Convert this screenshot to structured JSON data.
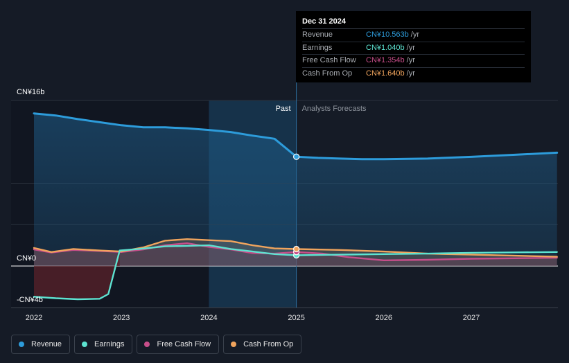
{
  "chart_data": {
    "type": "area",
    "x_ticks": [
      "2022",
      "2023",
      "2024",
      "2025",
      "2026",
      "2027"
    ],
    "y_ticks": [
      {
        "value": 16,
        "label": "CN¥16b"
      },
      {
        "value": 0,
        "label": "CN¥0"
      },
      {
        "value": -4,
        "label": "-CN¥4b"
      }
    ],
    "ylim": [
      -4,
      16
    ],
    "xlim": [
      2021.78,
      2027.98
    ],
    "past_label": "Past",
    "forecast_label": "Analysts Forecasts",
    "divider_x": 2025.0,
    "highlight_start_x": 2024.0,
    "series": [
      {
        "name": "Revenue",
        "color": "#2d9cdb",
        "points": [
          [
            2022.0,
            14.75
          ],
          [
            2022.25,
            14.55
          ],
          [
            2022.5,
            14.2
          ],
          [
            2022.75,
            13.9
          ],
          [
            2023.0,
            13.6
          ],
          [
            2023.25,
            13.4
          ],
          [
            2023.5,
            13.4
          ],
          [
            2023.75,
            13.3
          ],
          [
            2024.0,
            13.15
          ],
          [
            2024.25,
            12.95
          ],
          [
            2024.5,
            12.6
          ],
          [
            2024.75,
            12.3
          ],
          [
            2025.0,
            10.563
          ],
          [
            2025.25,
            10.45
          ],
          [
            2025.5,
            10.38
          ],
          [
            2025.75,
            10.33
          ],
          [
            2026.0,
            10.32
          ],
          [
            2026.5,
            10.38
          ],
          [
            2027.0,
            10.55
          ],
          [
            2027.5,
            10.75
          ],
          [
            2027.98,
            10.95
          ]
        ]
      },
      {
        "name": "Earnings",
        "color": "#5de3d1",
        "points": [
          [
            2022.0,
            -2.95
          ],
          [
            2022.25,
            -3.1
          ],
          [
            2022.5,
            -3.2
          ],
          [
            2022.75,
            -3.15
          ],
          [
            2022.85,
            -2.7
          ],
          [
            2022.98,
            1.5
          ],
          [
            2023.2,
            1.65
          ],
          [
            2023.5,
            1.9
          ],
          [
            2023.75,
            1.95
          ],
          [
            2024.0,
            2.0
          ],
          [
            2024.25,
            1.65
          ],
          [
            2024.5,
            1.4
          ],
          [
            2024.75,
            1.15
          ],
          [
            2025.0,
            1.04
          ],
          [
            2025.5,
            1.1
          ],
          [
            2026.0,
            1.15
          ],
          [
            2026.5,
            1.2
          ],
          [
            2027.0,
            1.28
          ],
          [
            2027.5,
            1.32
          ],
          [
            2027.98,
            1.35
          ]
        ]
      },
      {
        "name": "Free Cash Flow",
        "color": "#c74e8a",
        "points": [
          [
            2022.0,
            1.6
          ],
          [
            2022.2,
            1.3
          ],
          [
            2022.45,
            1.55
          ],
          [
            2022.75,
            1.45
          ],
          [
            2023.0,
            1.35
          ],
          [
            2023.25,
            1.6
          ],
          [
            2023.5,
            2.0
          ],
          [
            2023.75,
            2.2
          ],
          [
            2024.0,
            1.85
          ],
          [
            2024.25,
            1.6
          ],
          [
            2024.5,
            1.25
          ],
          [
            2024.75,
            1.2
          ],
          [
            2025.0,
            1.354
          ],
          [
            2025.3,
            1.2
          ],
          [
            2025.6,
            0.85
          ],
          [
            2026.0,
            0.55
          ],
          [
            2026.5,
            0.6
          ],
          [
            2027.0,
            0.7
          ],
          [
            2027.5,
            0.75
          ],
          [
            2027.98,
            0.8
          ]
        ]
      },
      {
        "name": "Cash From Op",
        "color": "#f0a45d",
        "points": [
          [
            2022.0,
            1.75
          ],
          [
            2022.2,
            1.35
          ],
          [
            2022.45,
            1.65
          ],
          [
            2022.75,
            1.5
          ],
          [
            2023.0,
            1.4
          ],
          [
            2023.25,
            1.8
          ],
          [
            2023.5,
            2.45
          ],
          [
            2023.75,
            2.6
          ],
          [
            2024.0,
            2.5
          ],
          [
            2024.25,
            2.4
          ],
          [
            2024.5,
            2.0
          ],
          [
            2024.75,
            1.7
          ],
          [
            2025.0,
            1.64
          ],
          [
            2025.5,
            1.55
          ],
          [
            2026.0,
            1.4
          ],
          [
            2026.5,
            1.2
          ],
          [
            2027.0,
            1.1
          ],
          [
            2027.5,
            1.0
          ],
          [
            2027.98,
            0.9
          ]
        ]
      }
    ]
  },
  "tooltip": {
    "date": "Dec 31 2024",
    "rows": [
      {
        "name": "Revenue",
        "value": "CN¥10.563b",
        "unit": "/yr",
        "color": "#2d9cdb"
      },
      {
        "name": "Earnings",
        "value": "CN¥1.040b",
        "unit": "/yr",
        "color": "#5de3d1"
      },
      {
        "name": "Free Cash Flow",
        "value": "CN¥1.354b",
        "unit": "/yr",
        "color": "#c74e8a"
      },
      {
        "name": "Cash From Op",
        "value": "CN¥1.640b",
        "unit": "/yr",
        "color": "#f0a45d"
      }
    ]
  },
  "legend": [
    {
      "name": "Revenue",
      "color": "#2d9cdb"
    },
    {
      "name": "Earnings",
      "color": "#5de3d1"
    },
    {
      "name": "Free Cash Flow",
      "color": "#c74e8a"
    },
    {
      "name": "Cash From Op",
      "color": "#f0a45d"
    }
  ]
}
